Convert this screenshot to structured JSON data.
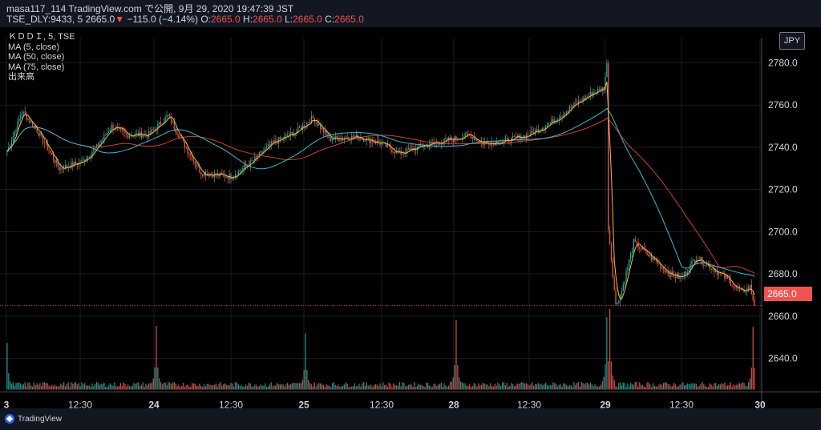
{
  "header": {
    "line1": "masa117_114 TradingView.com で公開, 9月 29, 2020 19:47:39 JST",
    "symbol": "TSE_DLY:9433, 5",
    "last": "2665.0",
    "change_arrow": "▼",
    "change": "−115.0 (−4.14%)",
    "o_label": "O:",
    "o_val": "2665.0",
    "h_label": "H:",
    "h_val": "2665.0",
    "l_label": "L:",
    "l_val": "2665.0",
    "c_label": "C:",
    "c_val": "2665.0"
  },
  "legend": {
    "title": "ＫＤＤＩ, 5, TSE",
    "ma5": "MA (5, close)",
    "ma50": "MA (50, close)",
    "ma75": "MA (75, close)",
    "volume": "出来高"
  },
  "currency": "JPY",
  "last_price_label": "2665.0",
  "footer": {
    "brand": "TradingView"
  },
  "colors": {
    "up": "#26a69a",
    "down": "#ef5350",
    "vol_up": "#26a69a",
    "vol_down": "#ef5350",
    "ma5": "#f0c040",
    "ma50": "#3fb8d0",
    "ma75": "#d04030",
    "grid": "#2a2e39"
  },
  "chart_data": {
    "type": "candlestick",
    "title": "",
    "ylim": [
      2620,
      2790
    ],
    "yticks": [
      2640,
      2660,
      2680,
      2700,
      2720,
      2740,
      2760,
      2780
    ],
    "ytick_labels": [
      "2640.0",
      "2660.0",
      "2680.0",
      "2700.0",
      "2720.0",
      "2740.0",
      "2760.0",
      "2780.0"
    ],
    "session_labels": [
      "3",
      "12:30",
      "24",
      "12:30",
      "25",
      "12:30",
      "28",
      "12:30",
      "29",
      "12:30",
      "30"
    ],
    "last_price": 2665.0,
    "anchors": [
      {
        "t": 0,
        "p": 2738
      },
      {
        "t": 10,
        "p": 2757
      },
      {
        "t": 20,
        "p": 2748
      },
      {
        "t": 35,
        "p": 2730
      },
      {
        "t": 50,
        "p": 2733
      },
      {
        "t": 60,
        "p": 2740
      },
      {
        "t": 70,
        "p": 2750
      },
      {
        "t": 80,
        "p": 2746
      },
      {
        "t": 95,
        "p": 2746
      },
      {
        "t": 108,
        "p": 2755
      },
      {
        "t": 118,
        "p": 2742
      },
      {
        "t": 130,
        "p": 2728
      },
      {
        "t": 150,
        "p": 2726
      },
      {
        "t": 162,
        "p": 2732
      },
      {
        "t": 178,
        "p": 2742
      },
      {
        "t": 193,
        "p": 2747
      },
      {
        "t": 205,
        "p": 2754
      },
      {
        "t": 216,
        "p": 2744
      },
      {
        "t": 235,
        "p": 2745
      },
      {
        "t": 250,
        "p": 2742
      },
      {
        "t": 263,
        "p": 2737
      },
      {
        "t": 280,
        "p": 2741
      },
      {
        "t": 300,
        "p": 2744
      },
      {
        "t": 310,
        "p": 2746
      },
      {
        "t": 318,
        "p": 2742
      },
      {
        "t": 335,
        "p": 2743
      },
      {
        "t": 350,
        "p": 2746
      },
      {
        "t": 365,
        "p": 2752
      },
      {
        "t": 380,
        "p": 2760
      },
      {
        "t": 393,
        "p": 2766
      },
      {
        "t": 400,
        "p": 2768
      },
      {
        "t": 402,
        "p": 2779
      },
      {
        "t": 403,
        "p": 2702
      },
      {
        "t": 408,
        "p": 2665
      },
      {
        "t": 412,
        "p": 2672
      },
      {
        "t": 420,
        "p": 2695
      },
      {
        "t": 428,
        "p": 2690
      },
      {
        "t": 436,
        "p": 2685
      },
      {
        "t": 444,
        "p": 2680
      },
      {
        "t": 452,
        "p": 2678
      },
      {
        "t": 462,
        "p": 2688
      },
      {
        "t": 472,
        "p": 2683
      },
      {
        "t": 482,
        "p": 2678
      },
      {
        "t": 492,
        "p": 2671
      },
      {
        "t": 498,
        "p": 2674
      },
      {
        "t": 501,
        "p": 2665
      }
    ],
    "volume_spikes": [
      {
        "t": 0,
        "v": 0.55
      },
      {
        "t": 100,
        "v": 0.75
      },
      {
        "t": 200,
        "v": 0.66
      },
      {
        "t": 301,
        "v": 0.82
      },
      {
        "t": 402,
        "v": 0.85
      },
      {
        "t": 404,
        "v": 0.95
      },
      {
        "t": 500,
        "v": 0.74
      }
    ]
  }
}
